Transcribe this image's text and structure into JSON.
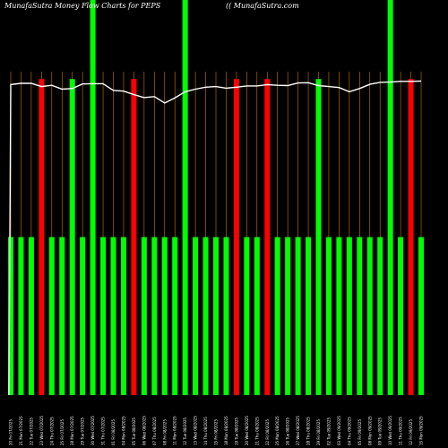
{
  "header": {
    "title": "MunafaSutra  Money Flow  Charts for PEPS",
    "watermark": "(( MunafaSutra.com"
  },
  "colors": {
    "background": "#000000",
    "up": "#00ff00",
    "down": "#ff0000",
    "line": "#ffffff",
    "grid": "#cc7a00"
  },
  "chart_data": {
    "type": "bar",
    "categories": [
      "20 Fri 07/2025",
      "21 Mon 07/2025",
      "22 Tue 07/2025",
      "23 Wed 07/2025",
      "24 Thu 07/2025",
      "25 Fri 07/2025",
      "28 Mon 07/2025",
      "29 Tue 07/2025",
      "30 Wed 07/2025",
      "31 Thu 07/2025",
      "01 Fri 08/2025",
      "04 Mon 08/2025",
      "05 Tue 08/2025",
      "06 Wed 08/2025",
      "07 Thu 08/2025",
      "08 Fri 08/2025",
      "11 Mon 08/2025",
      "12 Tue 08/2025",
      "13 Wed 08/2025",
      "14 Thu 08/2025",
      "15 Fri 08/2025",
      "18 Mon 08/2025",
      "19 Tue 08/2025",
      "20 Wed 08/2025",
      "21 Thu 08/2025",
      "22 Fri 08/2025",
      "25 Mon 08/2025",
      "26 Tue 08/2025",
      "27 Wed 08/2025",
      "28 Thu 08/2025",
      "29 Fri 08/2025",
      "02 Tue 09/2025",
      "03 Wed 09/2025",
      "04 Thu 09/2025",
      "05 Fri 09/2025",
      "08 Mon 09/2025",
      "09 Tue 09/2025",
      "10 Wed 09/2025",
      "11 Thu 09/2025",
      "12 Fri 09/2025",
      "15 Mon 09/2025"
    ],
    "volume": [
      20,
      20,
      20,
      40,
      20,
      20,
      40,
      20,
      50,
      20,
      20,
      20,
      40,
      20,
      20,
      20,
      20,
      50,
      20,
      20,
      20,
      20,
      40,
      20,
      20,
      40,
      20,
      20,
      20,
      20,
      40,
      20,
      20,
      20,
      20,
      20,
      20,
      50,
      20,
      40,
      20
    ],
    "direction": [
      "up",
      "up",
      "up",
      "down",
      "up",
      "up",
      "up",
      "up",
      "up",
      "up",
      "up",
      "up",
      "down",
      "up",
      "up",
      "up",
      "up",
      "up",
      "up",
      "up",
      "up",
      "up",
      "down",
      "up",
      "up",
      "down",
      "up",
      "up",
      "up",
      "up",
      "up",
      "up",
      "up",
      "up",
      "up",
      "up",
      "up",
      "up",
      "up",
      "down",
      "up"
    ],
    "price": [
      96,
      96.4,
      96.4,
      95.4,
      95.8,
      94.6,
      94.8,
      96.2,
      96.3,
      96.3,
      94.2,
      94,
      92.9,
      92,
      92.3,
      90.3,
      91.9,
      93.8,
      94.6,
      95.2,
      95.4,
      94.9,
      95.2,
      95.6,
      95.6,
      96,
      95.8,
      95.7,
      96.5,
      96.6,
      95.7,
      95.4,
      95.1,
      93.8,
      94.8,
      96.1,
      96.7,
      96.8,
      97,
      97,
      97.1
    ],
    "ylim_volume": [
      0,
      50
    ],
    "ylim_price": [
      0,
      100
    ],
    "grid": true
  }
}
